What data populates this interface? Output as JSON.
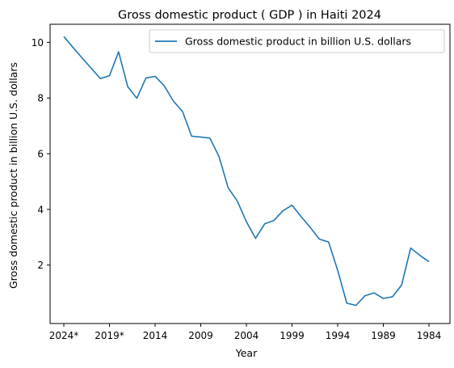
{
  "chart_data": {
    "type": "line",
    "title": "Gross domestic product ( GDP ) in Haiti 2024",
    "xlabel": "Year",
    "ylabel": "Gross domestic product in billion U.S. dollars",
    "x_tick_labels": [
      "2024*",
      "2019*",
      "2014",
      "2009",
      "2004",
      "1999",
      "1994",
      "1989",
      "1984"
    ],
    "y_tick_labels": [
      "2",
      "4",
      "6",
      "8",
      "10"
    ],
    "y_ticks": [
      2,
      4,
      6,
      8,
      10
    ],
    "ylim": [
      -0.1,
      10.65
    ],
    "grid": false,
    "legend_position": "top-right",
    "color": "#1f77b4",
    "x": [
      "2024*",
      "2023*",
      "2022*",
      "2021*",
      "2020*",
      "2019*",
      "2018",
      "2017",
      "2016",
      "2015",
      "2014",
      "2013",
      "2012",
      "2011",
      "2010",
      "2009",
      "2008",
      "2007",
      "2006",
      "2005",
      "2004",
      "2003",
      "2002",
      "2001",
      "2000",
      "1999",
      "1998",
      "1997",
      "1996",
      "1995",
      "1994",
      "1993",
      "1992",
      "1991",
      "1990",
      "1989",
      "1988",
      "1987",
      "1986",
      "1985",
      "1984"
    ],
    "series": [
      {
        "name": "Gross domestic product in billion U.S. dollars",
        "values": [
          10.21,
          9.82,
          9.44,
          9.07,
          8.7,
          8.8,
          9.66,
          8.41,
          7.99,
          8.72,
          8.78,
          8.44,
          7.89,
          7.52,
          6.63,
          6.6,
          6.56,
          5.9,
          4.78,
          4.3,
          3.56,
          2.96,
          3.48,
          3.6,
          3.95,
          4.15,
          3.74,
          3.35,
          2.93,
          2.83,
          1.81,
          0.63,
          0.55,
          0.9,
          1.0,
          0.8,
          0.86,
          1.28,
          2.61,
          2.35,
          2.12
        ]
      }
    ]
  }
}
